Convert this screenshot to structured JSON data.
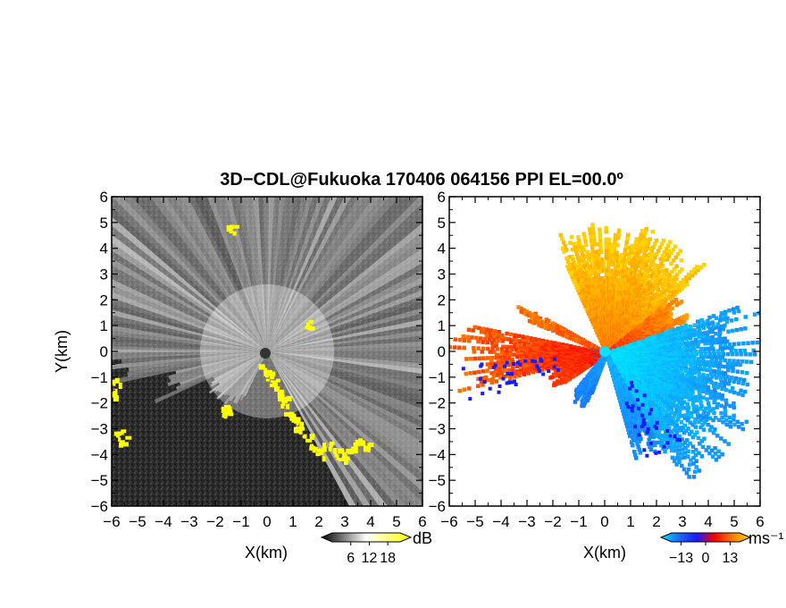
{
  "chart_data": {
    "type": "heatmap",
    "title": "3D−CDL@Fukuoka 170406 064156 PPI EL=00.0º",
    "panels": [
      {
        "id": "reflectivity",
        "xlabel": "X(km)",
        "ylabel": "Y(km)",
        "xlim": [
          -6,
          6
        ],
        "ylim": [
          -6,
          6
        ],
        "xticks": [
          "−6",
          "−5",
          "−4",
          "−3",
          "−2",
          "−1",
          "0",
          "1",
          "2",
          "3",
          "4",
          "5",
          "6"
        ],
        "yticks": [
          "−6",
          "−5",
          "−4",
          "−3",
          "−2",
          "−1",
          "0",
          "1",
          "2",
          "3",
          "4",
          "5",
          "6"
        ],
        "background_color": "#2b2b2b",
        "beam_color": "#e8e8e8",
        "highlight_color": "#ffff00",
        "colorbar": {
          "unit": "dB",
          "ticks": [
            "6",
            "12",
            "18"
          ],
          "tick_values": [
            6,
            12,
            18
          ],
          "range": [
            0,
            22
          ],
          "colors": [
            "#000000",
            "#ffffff",
            "#ffff00"
          ]
        }
      },
      {
        "id": "doppler-velocity",
        "xlabel": "X(km)",
        "ylabel": "",
        "xlim": [
          -6,
          6
        ],
        "ylim": [
          -6,
          6
        ],
        "xticks": [
          "−6",
          "−5",
          "−4",
          "−3",
          "−2",
          "−1",
          "0",
          "1",
          "2",
          "3",
          "4",
          "5",
          "6"
        ],
        "yticks": [
          "−6",
          "−5",
          "−4",
          "−3",
          "−2",
          "−1",
          "0",
          "1",
          "2",
          "3",
          "4",
          "5",
          "6"
        ],
        "background_color": "#ffffff",
        "colorbar": {
          "unit": "ms⁻¹",
          "ticks": [
            "−13",
            "0",
            "13"
          ],
          "tick_values": [
            -13,
            0,
            13
          ],
          "range": [
            -18,
            18
          ],
          "colors": [
            "#00e5ff",
            "#1e6bff",
            "#1a1aff",
            "#ff0000",
            "#ff7f00",
            "#ffd400"
          ]
        }
      }
    ]
  }
}
